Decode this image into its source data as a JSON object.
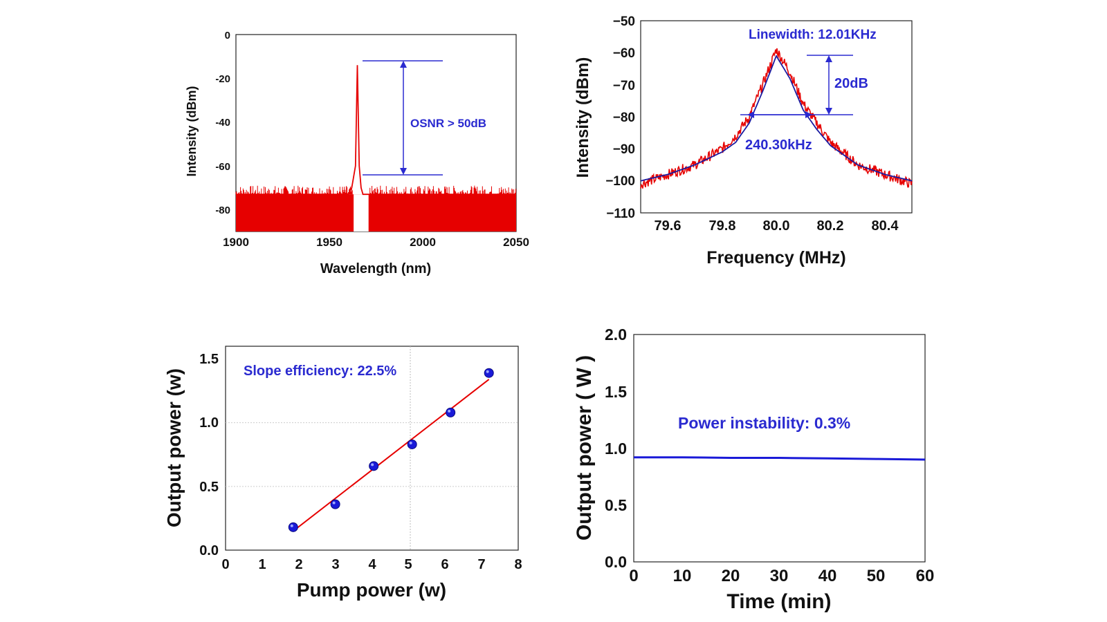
{
  "chart_data": [
    {
      "type": "line",
      "xlabel": "Wavelength (nm)",
      "ylabel": "Intensity (dBm)",
      "xlim": [
        1900,
        2050
      ],
      "ylim": [
        -90,
        0
      ],
      "xticks": [
        "1900",
        "1950",
        "2000",
        "2050"
      ],
      "yticks": [
        "0",
        "-20",
        "-40",
        "-60",
        "-80"
      ],
      "series": [
        {
          "values_description_free": true,
          "x": [
            1900,
            1920,
            1940,
            1960,
            1962,
            1964,
            1965,
            1966,
            1967,
            1968,
            1970,
            1972,
            1980,
            2000,
            2020,
            2050
          ],
          "y": [
            -73,
            -73,
            -73,
            -73,
            -70,
            -60,
            -14,
            -60,
            -70,
            -73,
            -73,
            -73,
            -73,
            -73,
            -73,
            -73
          ],
          "color": "#e60000"
        }
      ],
      "annotations": [
        "OSNR > 50dB"
      ]
    },
    {
      "type": "line",
      "xlabel": "Frequency (MHz)",
      "ylabel": "Intensity (dBm)",
      "xlim": [
        79.5,
        80.5
      ],
      "ylim": [
        -110,
        -50
      ],
      "xticks": [
        "79.6",
        "79.8",
        "80.0",
        "80.2",
        "80.4"
      ],
      "yticks": [
        "−50",
        "−60",
        "−70",
        "−80",
        "−90",
        "−100",
        "−110"
      ],
      "series": [
        {
          "x": [
            79.5,
            79.6,
            79.7,
            79.8,
            79.85,
            79.9,
            79.95,
            80.0,
            80.05,
            80.1,
            80.15,
            80.2,
            80.3,
            80.4,
            80.5
          ],
          "y": [
            -101,
            -98,
            -95,
            -90,
            -86,
            -80,
            -70,
            -59,
            -66,
            -76,
            -82,
            -88,
            -95,
            -98,
            -101
          ],
          "color": "#e60000"
        },
        {
          "x": [
            79.5,
            79.6,
            79.7,
            79.8,
            79.85,
            79.9,
            79.95,
            80.0,
            80.05,
            80.1,
            80.15,
            80.2,
            80.3,
            80.4,
            80.5
          ],
          "y": [
            -100,
            -98,
            -95,
            -91,
            -88,
            -82,
            -72,
            -61,
            -68,
            -78,
            -84,
            -89,
            -95,
            -98,
            -100
          ],
          "color": "#1a1aa0"
        }
      ],
      "annotations": [
        "Linewidth: 12.01KHz",
        "20dB",
        "240.30kHz"
      ]
    },
    {
      "type": "scatter",
      "xlabel": "Pump power (w)",
      "ylabel": "Output power (w)",
      "xlim": [
        0,
        8
      ],
      "ylim": [
        0,
        1.6
      ],
      "xticks": [
        "0",
        "1",
        "2",
        "3",
        "4",
        "5",
        "6",
        "7",
        "8"
      ],
      "yticks": [
        "0.0",
        "0.5",
        "1.0",
        "1.5"
      ],
      "series": [
        {
          "x": [
            1.85,
            3.0,
            4.05,
            5.1,
            6.15,
            7.2
          ],
          "y": [
            0.18,
            0.36,
            0.66,
            0.83,
            1.08,
            1.39
          ],
          "color": "#1a1ad8"
        }
      ],
      "fit_line": {
        "x": [
          1.85,
          7.2
        ],
        "y": [
          0.15,
          1.34
        ],
        "color": "#e60000"
      },
      "annotations": [
        "Slope efficiency: 22.5%"
      ]
    },
    {
      "type": "line",
      "xlabel": "Time (min)",
      "ylabel": "Output power ( W )",
      "xlim": [
        0,
        60
      ],
      "ylim": [
        0,
        2.0
      ],
      "xticks": [
        "0",
        "10",
        "20",
        "30",
        "40",
        "50",
        "60"
      ],
      "yticks": [
        "0.0",
        "0.5",
        "1.0",
        "1.5",
        "2.0"
      ],
      "series": [
        {
          "x": [
            0,
            10,
            20,
            30,
            40,
            50,
            60
          ],
          "y": [
            0.92,
            0.92,
            0.915,
            0.915,
            0.91,
            0.905,
            0.9
          ],
          "color": "#1a1ad8"
        }
      ],
      "annotations": [
        "Power instability: 0.3%"
      ]
    }
  ]
}
